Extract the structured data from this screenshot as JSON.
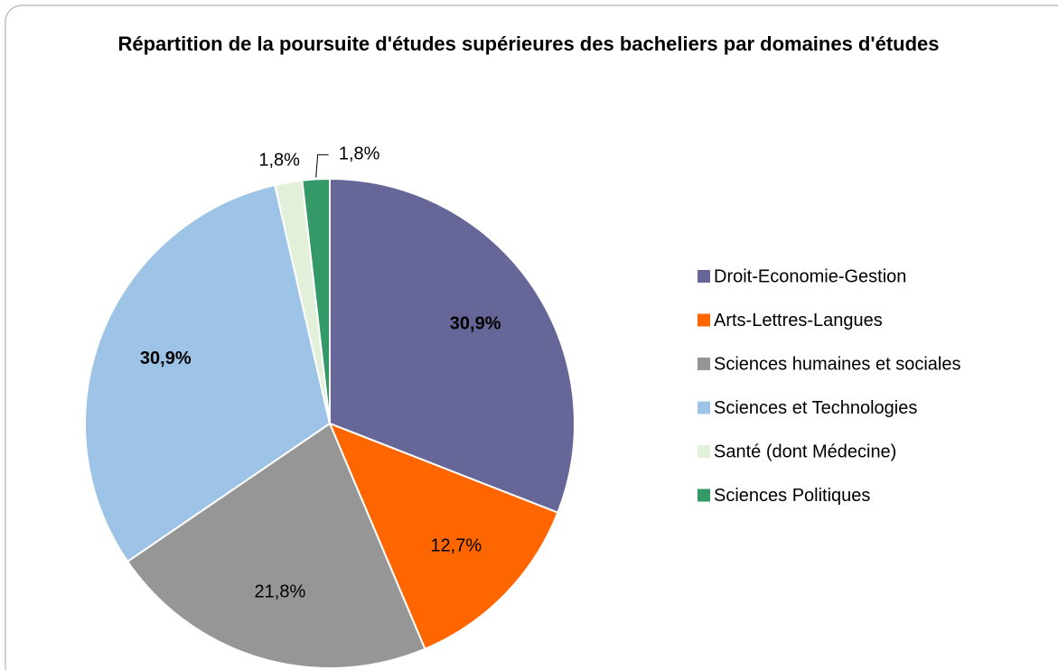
{
  "chart_data": {
    "type": "pie",
    "title": "Répartition de la poursuite d'études supérieures des bacheliers par domaines d'études",
    "categories": [
      "Droit-Economie-Gestion",
      "Arts-Lettres-Langues",
      "Sciences humaines et sociales",
      "Sciences et Technologies",
      "Santé (dont Médecine)",
      "Sciences Politiques"
    ],
    "values": [
      30.9,
      12.7,
      21.8,
      30.9,
      1.8,
      1.8
    ],
    "value_labels": [
      "30,9%",
      "12,7%",
      "21,8%",
      "30,9%",
      "1,8%",
      "1,8%"
    ],
    "colors": [
      "#666699",
      "#ff6600",
      "#969696",
      "#9dc3e6",
      "#e2f0d9",
      "#339966"
    ],
    "legend": "right"
  }
}
